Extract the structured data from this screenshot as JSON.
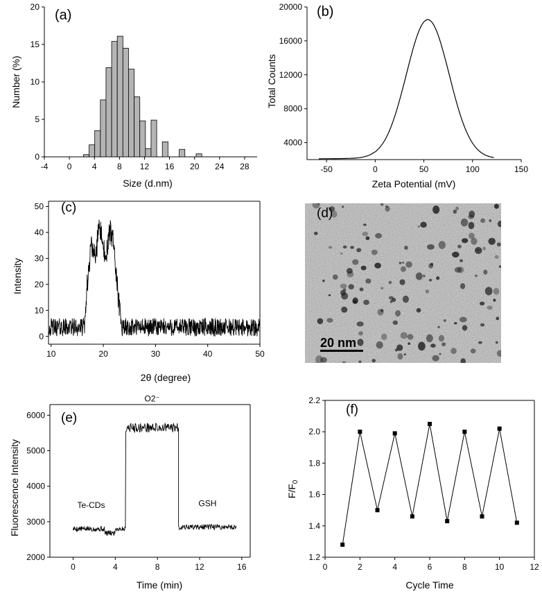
{
  "chart_data": [
    {
      "panel": "(a)",
      "type": "bar",
      "xlabel": "Size (d.nm)",
      "ylabel": "Number (%)",
      "xlim": [
        -4,
        30
      ],
      "ylim": [
        0,
        20
      ],
      "xticks": [
        -4,
        0,
        4,
        8,
        12,
        16,
        20,
        24,
        28
      ],
      "yticks": [
        0,
        5,
        10,
        15,
        20
      ],
      "bin_width": 0.9,
      "bar_color": "#b4b4b4",
      "x": [
        2.7,
        3.6,
        4.5,
        5.4,
        6.3,
        7.2,
        8.1,
        9.0,
        9.9,
        10.8,
        11.7,
        12.6,
        13.5,
        14.4,
        15.3,
        16.2,
        17.1,
        18.0,
        18.9,
        19.8,
        20.7,
        21.6
      ],
      "values": [
        0.3,
        1.6,
        3.5,
        7.6,
        11.9,
        15.4,
        16.1,
        14.5,
        11.7,
        8.0,
        4.8,
        1.1,
        4.9,
        0,
        2.0,
        0,
        0,
        1.0,
        0,
        0,
        0.4,
        0
      ]
    },
    {
      "panel": "(b)",
      "type": "line",
      "xlabel": "Zeta Potential (mV)",
      "ylabel": "Total Counts",
      "xlim": [
        -70,
        150
      ],
      "ylim": [
        2000,
        20000
      ],
      "xticks": [
        -50,
        0,
        50,
        100,
        150
      ],
      "yticks": [
        4000,
        8000,
        12000,
        16000,
        20000
      ],
      "curve": {
        "model": "gaussian",
        "baseline": 2100,
        "peak_x": 54,
        "peak_y": 18500,
        "sigma": 22,
        "x_range": [
          -58,
          122
        ]
      }
    },
    {
      "panel": "(c)",
      "type": "line",
      "xlabel": "2θ (degree)",
      "ylabel": "Intensity",
      "xlim": [
        9.5,
        50
      ],
      "ylim": [
        -3,
        52
      ],
      "xticks": [
        10,
        20,
        30,
        40,
        50
      ],
      "yticks": [
        0,
        10,
        20,
        30,
        40,
        50
      ],
      "curve": {
        "model": "noisy-peak",
        "baseline": 3.5,
        "noise": 3.5,
        "peak_center": 20,
        "peak_height": 36,
        "plateau_from": 17.8,
        "plateau_to": 22.0,
        "x_range": [
          9.6,
          50
        ]
      }
    },
    {
      "panel": "(e)",
      "type": "line",
      "xlabel": "Time (min)",
      "ylabel": "Fluorescence Intensity",
      "xlim": [
        -2.2,
        16.8
      ],
      "ylim": [
        2000,
        6300
      ],
      "xticks": [
        0,
        4,
        8,
        12,
        16
      ],
      "yticks": [
        2000,
        3000,
        4000,
        5000,
        6000
      ],
      "segments": [
        {
          "x_from": 0,
          "x_to": 5,
          "level": 2800,
          "label": "Te-CDs"
        },
        {
          "x_from": 5,
          "x_to": 10,
          "level": 5650,
          "label": "O2⁻"
        },
        {
          "x_from": 10,
          "x_to": 15.5,
          "level": 2850,
          "label": "GSH"
        }
      ]
    },
    {
      "panel": "(f)",
      "type": "line",
      "xlabel": "Cycle Time",
      "ylabel": "F/F0",
      "xlim": [
        0,
        12
      ],
      "ylim": [
        1.2,
        2.2
      ],
      "xticks": [
        0,
        2,
        4,
        6,
        8,
        10,
        12
      ],
      "yticks": [
        1.2,
        1.4,
        1.6,
        1.8,
        2.0,
        2.2
      ],
      "x": [
        1,
        2,
        3,
        4,
        5,
        6,
        7,
        8,
        9,
        10,
        11
      ],
      "values": [
        1.28,
        2.0,
        1.5,
        1.99,
        1.46,
        2.05,
        1.43,
        2.0,
        1.46,
        2.02,
        1.42
      ]
    }
  ],
  "panel_d": {
    "label": "(d)",
    "scale_bar": "20 nm"
  }
}
